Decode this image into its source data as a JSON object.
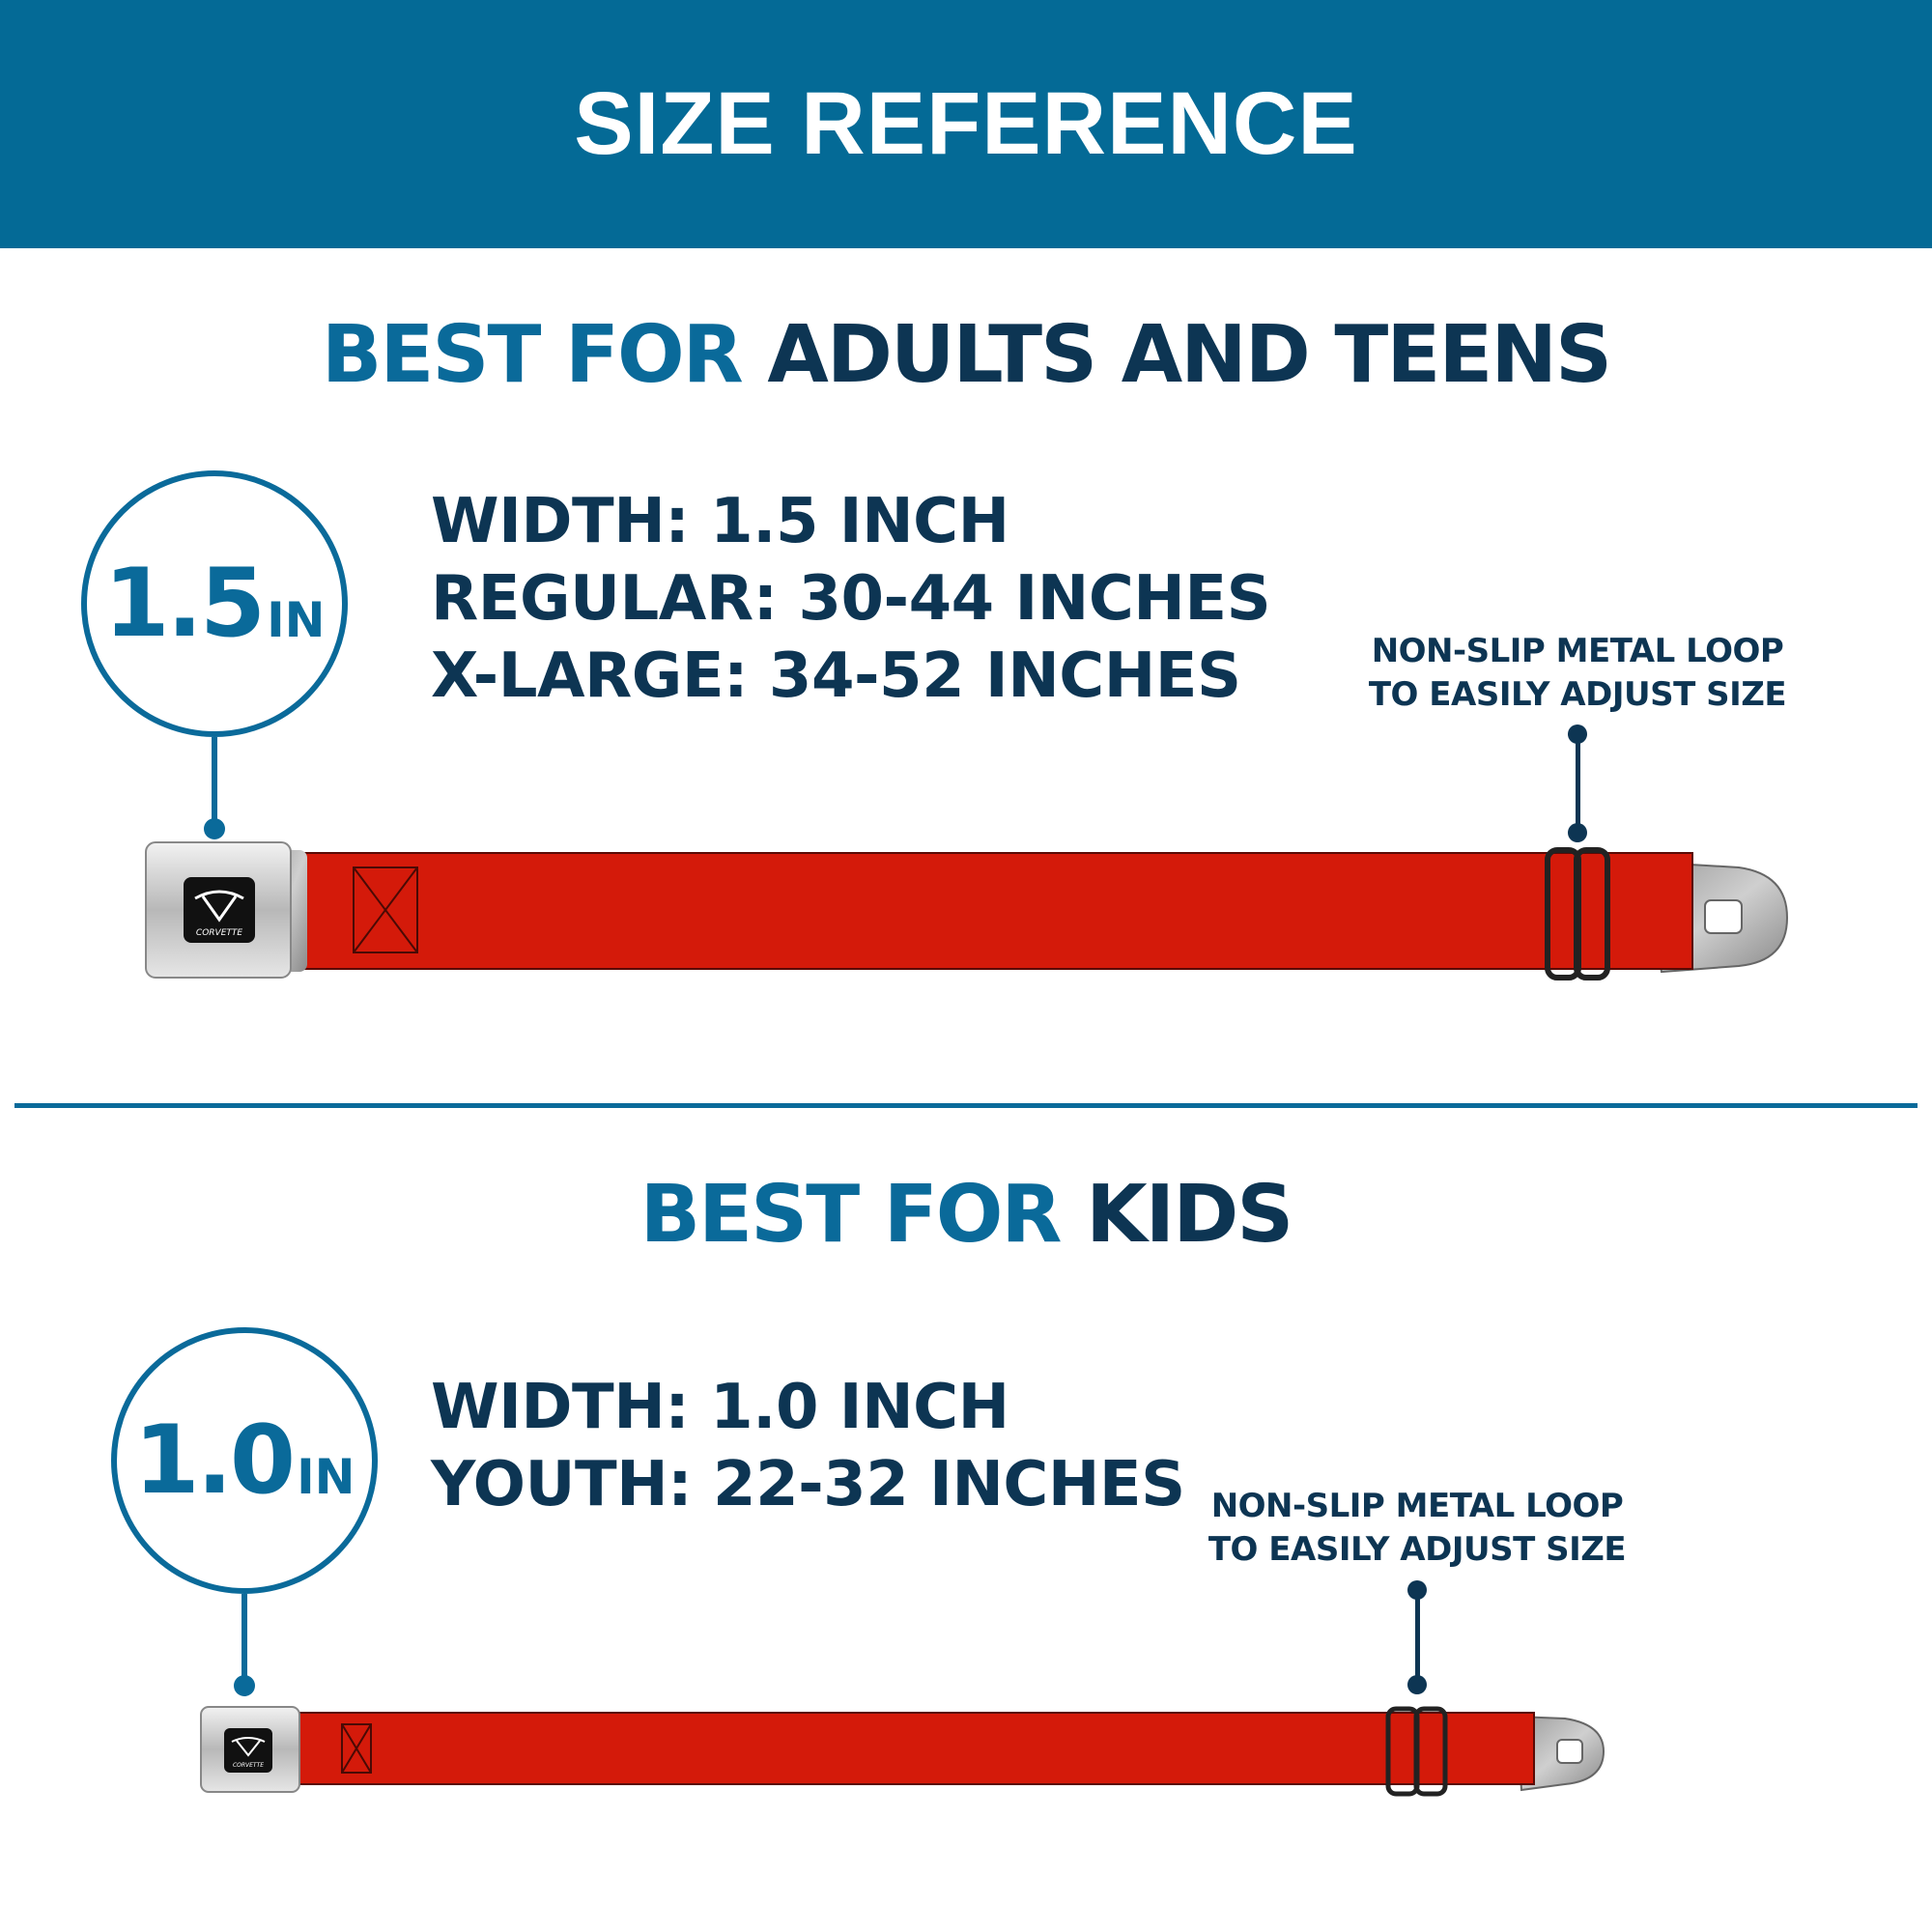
{
  "header": {
    "title": "SIZE REFERENCE"
  },
  "colors": {
    "header_bg": "#046a96",
    "accent_blue": "#0a6a9a",
    "dark_navy": "#0d3553",
    "strap_red": "#d41a0a"
  },
  "sections": [
    {
      "title_highlight": "BEST FOR",
      "title_rest": "ADULTS AND TEENS",
      "badge_number": "1.5",
      "badge_unit": "IN",
      "specs": [
        "WIDTH: 1.5 INCH",
        "REGULAR: 30-44 INCHES",
        "X-LARGE: 34-52 INCHES"
      ],
      "note_lines": [
        "NON-SLIP METAL LOOP",
        "TO EASILY ADJUST SIZE"
      ],
      "buckle_logo": "CORVETTE"
    },
    {
      "title_highlight": "BEST FOR",
      "title_rest": "KIDS",
      "badge_number": "1.0",
      "badge_unit": "IN",
      "specs": [
        "WIDTH: 1.0 INCH",
        "YOUTH: 22-32 INCHES"
      ],
      "note_lines": [
        "NON-SLIP METAL LOOP",
        "TO EASILY ADJUST SIZE"
      ],
      "buckle_logo": "CORVETTE"
    }
  ]
}
